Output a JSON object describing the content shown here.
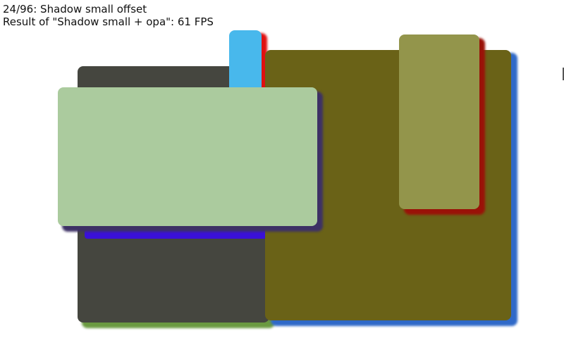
{
  "header": {
    "title": "24/96: Shadow small offset",
    "result": "Result of \"Shadow small + opa\": 61 FPS"
  },
  "colors": {
    "dark_gray": "#45463f",
    "green_shadow": "#6a9a40",
    "olive": "#6a6217",
    "blue_shadow": "#2f69c8",
    "sky_blue": "#48b8ec",
    "red_shadow": "#e01010",
    "light_olive": "#93954b",
    "dark_red_shadow": "#9a1208",
    "pale_green": "#abcb9e",
    "purple_shadow": "#3d3165",
    "violet_strip": "#3a10d8"
  }
}
